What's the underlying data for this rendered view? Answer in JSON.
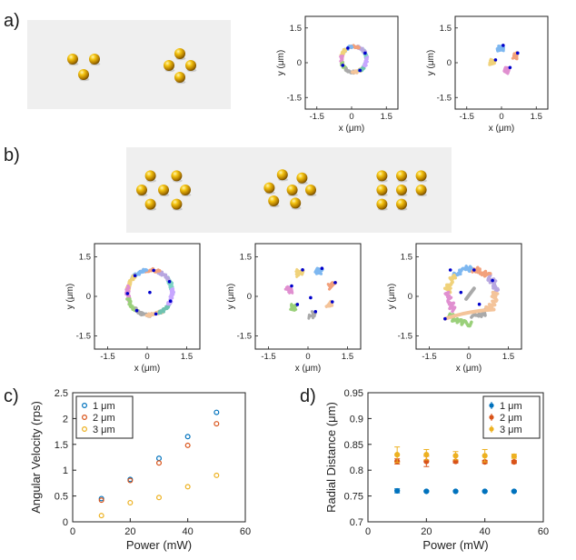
{
  "panel_labels": {
    "a": "a)",
    "b": "b)",
    "c": "c)",
    "d": "d)"
  },
  "trajectory_plots": {
    "xlabel": "x (μm)",
    "ylabel": "y (μm)",
    "xticks": [
      "-1.5",
      "0",
      "1.5"
    ],
    "yticks": [
      "1.5",
      "0",
      "-1.5"
    ],
    "range": [
      -2,
      2
    ]
  },
  "illustrations": {
    "a": [
      {
        "particles": [
          [
            -0.6,
            -0.35
          ],
          [
            0.6,
            -0.35
          ],
          [
            0,
            0.5
          ]
        ]
      },
      {
        "particles": [
          [
            -0.6,
            0
          ],
          [
            0.6,
            0
          ],
          [
            0,
            -0.65
          ],
          [
            0,
            0.65
          ]
        ]
      }
    ],
    "b": [
      {
        "particles": [
          [
            -0.6,
            -0.65
          ],
          [
            0.6,
            -0.65
          ],
          [
            -1.0,
            0
          ],
          [
            0,
            0
          ],
          [
            1.0,
            0
          ],
          [
            -0.6,
            0.65
          ],
          [
            0.6,
            0.65
          ]
        ]
      },
      {
        "particles": [
          [
            -0.3,
            -0.7
          ],
          [
            0.6,
            -0.55
          ],
          [
            -0.9,
            -0.1
          ],
          [
            0.15,
            0
          ],
          [
            1.0,
            0
          ],
          [
            -0.7,
            0.5
          ],
          [
            0.3,
            0.6
          ]
        ]
      },
      {
        "particles": [
          [
            -0.9,
            -0.65
          ],
          [
            0,
            -0.65
          ],
          [
            0.9,
            -0.65
          ],
          [
            -0.9,
            0
          ],
          [
            0,
            0
          ],
          [
            0.9,
            0
          ],
          [
            -0.9,
            0.65
          ],
          [
            0,
            0.65
          ]
        ]
      }
    ]
  },
  "chart_data": [
    {
      "type": "scatter",
      "panel": "c",
      "title": "",
      "xlabel": "Power (mW)",
      "ylabel": "Angular Velocity (rps)",
      "xlim": [
        0,
        60
      ],
      "ylim": [
        0,
        2.5
      ],
      "xticks": [
        "0",
        "20",
        "40",
        "60"
      ],
      "yticks": [
        "0",
        "0.5",
        "1",
        "1.5",
        "2",
        "2.5"
      ],
      "legend_position": "top-left",
      "series": [
        {
          "name": "1 μm",
          "color": "#0072bd",
          "x": [
            10,
            20,
            30,
            40,
            50
          ],
          "y": [
            0.45,
            0.82,
            1.23,
            1.65,
            2.12
          ]
        },
        {
          "name": "2 μm",
          "color": "#d95319",
          "x": [
            10,
            20,
            30,
            40,
            50
          ],
          "y": [
            0.42,
            0.8,
            1.14,
            1.48,
            1.9
          ]
        },
        {
          "name": "3 μm",
          "color": "#edb120",
          "x": [
            10,
            20,
            30,
            40,
            50
          ],
          "y": [
            0.12,
            0.37,
            0.47,
            0.68,
            0.9
          ]
        }
      ]
    },
    {
      "type": "scatter",
      "panel": "d",
      "title": "",
      "xlabel": "Power (mW)",
      "ylabel": "Radial Distance (μm)",
      "xlim": [
        0,
        60
      ],
      "ylim": [
        0.7,
        0.95
      ],
      "xticks": [
        "0",
        "20",
        "40",
        "60"
      ],
      "yticks": [
        "0.7",
        "0.75",
        "0.8",
        "0.85",
        "0.9",
        "0.95"
      ],
      "legend_position": "top-right",
      "series": [
        {
          "name": "1 μm",
          "color": "#0072bd",
          "x": [
            10,
            20,
            30,
            40,
            50
          ],
          "y": [
            0.76,
            0.759,
            0.759,
            0.759,
            0.759
          ],
          "err": [
            0.004,
            0.001,
            0.001,
            0.001,
            0.001
          ]
        },
        {
          "name": "2 μm",
          "color": "#d95319",
          "x": [
            10,
            20,
            30,
            40,
            50
          ],
          "y": [
            0.817,
            0.817,
            0.817,
            0.816,
            0.816
          ],
          "err": [
            0.005,
            0.01,
            0.003,
            0.003,
            0.003
          ]
        },
        {
          "name": "3 μm",
          "color": "#edb120",
          "x": [
            10,
            20,
            30,
            40,
            50
          ],
          "y": [
            0.83,
            0.83,
            0.828,
            0.828,
            0.827
          ],
          "err": [
            0.015,
            0.01,
            0.008,
            0.012,
            0.004
          ]
        }
      ]
    }
  ]
}
